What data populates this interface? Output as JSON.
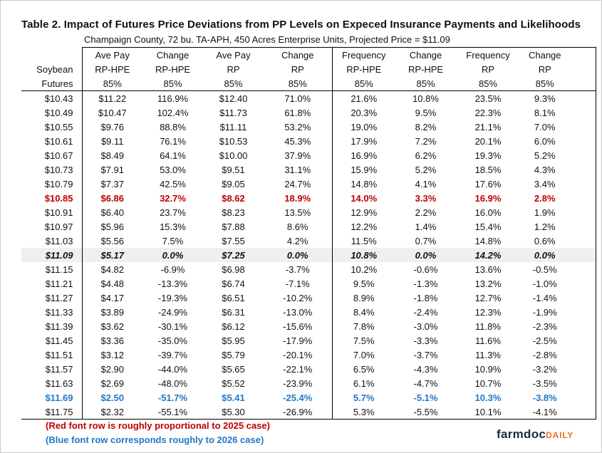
{
  "title": "Table 2. Impact of Futures Price Deviations from PP Levels on Expeced Insurance Payments and Likelihoods",
  "subtitle": "Champaign County, 72 bu. TA-APH, 450 Acres Enterprise Units, Projected Price = $11.09",
  "header": [
    [
      "",
      "Ave Pay",
      "Change",
      "Ave Pay",
      "Change",
      "Frequency",
      "Change",
      "Frequency",
      "Change"
    ],
    [
      "Soybean",
      "RP-HPE",
      "RP-HPE",
      "RP",
      "RP",
      "RP-HPE",
      "RP-HPE",
      "RP",
      "RP"
    ],
    [
      "Futures",
      "85%",
      "85%",
      "85%",
      "85%",
      "85%",
      "85%",
      "85%",
      "85%"
    ]
  ],
  "rows": [
    {
      "style": "",
      "cells": [
        "$10.43",
        "$11.22",
        "116.9%",
        "$12.40",
        "71.0%",
        "21.6%",
        "10.8%",
        "23.5%",
        "9.3%"
      ]
    },
    {
      "style": "",
      "cells": [
        "$10.49",
        "$10.47",
        "102.4%",
        "$11.73",
        "61.8%",
        "20.3%",
        "9.5%",
        "22.3%",
        "8.1%"
      ]
    },
    {
      "style": "",
      "cells": [
        "$10.55",
        "$9.76",
        "88.8%",
        "$11.11",
        "53.2%",
        "19.0%",
        "8.2%",
        "21.1%",
        "7.0%"
      ]
    },
    {
      "style": "",
      "cells": [
        "$10.61",
        "$9.11",
        "76.1%",
        "$10.53",
        "45.3%",
        "17.9%",
        "7.2%",
        "20.1%",
        "6.0%"
      ]
    },
    {
      "style": "",
      "cells": [
        "$10.67",
        "$8.49",
        "64.1%",
        "$10.00",
        "37.9%",
        "16.9%",
        "6.2%",
        "19.3%",
        "5.2%"
      ]
    },
    {
      "style": "",
      "cells": [
        "$10.73",
        "$7.91",
        "53.0%",
        "$9.51",
        "31.1%",
        "15.9%",
        "5.2%",
        "18.5%",
        "4.3%"
      ]
    },
    {
      "style": "",
      "cells": [
        "$10.79",
        "$7.37",
        "42.5%",
        "$9.05",
        "24.7%",
        "14.8%",
        "4.1%",
        "17.6%",
        "3.4%"
      ]
    },
    {
      "style": "red",
      "cells": [
        "$10.85",
        "$6.86",
        "32.7%",
        "$8.62",
        "18.9%",
        "14.0%",
        "3.3%",
        "16.9%",
        "2.8%"
      ]
    },
    {
      "style": "",
      "cells": [
        "$10.91",
        "$6.40",
        "23.7%",
        "$8.23",
        "13.5%",
        "12.9%",
        "2.2%",
        "16.0%",
        "1.9%"
      ]
    },
    {
      "style": "",
      "cells": [
        "$10.97",
        "$5.96",
        "15.3%",
        "$7.88",
        "8.6%",
        "12.2%",
        "1.4%",
        "15.4%",
        "1.2%"
      ]
    },
    {
      "style": "",
      "cells": [
        "$11.03",
        "$5.56",
        "7.5%",
        "$7.55",
        "4.2%",
        "11.5%",
        "0.7%",
        "14.8%",
        "0.6%"
      ]
    },
    {
      "style": "base",
      "cells": [
        "$11.09",
        "$5.17",
        "0.0%",
        "$7.25",
        "0.0%",
        "10.8%",
        "0.0%",
        "14.2%",
        "0.0%"
      ]
    },
    {
      "style": "",
      "cells": [
        "$11.15",
        "$4.82",
        "-6.9%",
        "$6.98",
        "-3.7%",
        "10.2%",
        "-0.6%",
        "13.6%",
        "-0.5%"
      ]
    },
    {
      "style": "",
      "cells": [
        "$11.21",
        "$4.48",
        "-13.3%",
        "$6.74",
        "-7.1%",
        "9.5%",
        "-1.3%",
        "13.2%",
        "-1.0%"
      ]
    },
    {
      "style": "",
      "cells": [
        "$11.27",
        "$4.17",
        "-19.3%",
        "$6.51",
        "-10.2%",
        "8.9%",
        "-1.8%",
        "12.7%",
        "-1.4%"
      ]
    },
    {
      "style": "",
      "cells": [
        "$11.33",
        "$3.89",
        "-24.9%",
        "$6.31",
        "-13.0%",
        "8.4%",
        "-2.4%",
        "12.3%",
        "-1.9%"
      ]
    },
    {
      "style": "",
      "cells": [
        "$11.39",
        "$3.62",
        "-30.1%",
        "$6.12",
        "-15.6%",
        "7.8%",
        "-3.0%",
        "11.8%",
        "-2.3%"
      ]
    },
    {
      "style": "",
      "cells": [
        "$11.45",
        "$3.36",
        "-35.0%",
        "$5.95",
        "-17.9%",
        "7.5%",
        "-3.3%",
        "11.6%",
        "-2.5%"
      ]
    },
    {
      "style": "",
      "cells": [
        "$11.51",
        "$3.12",
        "-39.7%",
        "$5.79",
        "-20.1%",
        "7.0%",
        "-3.7%",
        "11.3%",
        "-2.8%"
      ]
    },
    {
      "style": "",
      "cells": [
        "$11.57",
        "$2.90",
        "-44.0%",
        "$5.65",
        "-22.1%",
        "6.5%",
        "-4.3%",
        "10.9%",
        "-3.2%"
      ]
    },
    {
      "style": "",
      "cells": [
        "$11.63",
        "$2.69",
        "-48.0%",
        "$5.52",
        "-23.9%",
        "6.1%",
        "-4.7%",
        "10.7%",
        "-3.5%"
      ]
    },
    {
      "style": "blue",
      "cells": [
        "$11.69",
        "$2.50",
        "-51.7%",
        "$5.41",
        "-25.4%",
        "5.7%",
        "-5.1%",
        "10.3%",
        "-3.8%"
      ]
    },
    {
      "style": "",
      "cells": [
        "$11.75",
        "$2.32",
        "-55.1%",
        "$5.30",
        "-26.9%",
        "5.3%",
        "-5.5%",
        "10.1%",
        "-4.1%"
      ]
    }
  ],
  "notes": {
    "red": "(Red font row is roughly proportional to 2025 case)",
    "blue": "(Blue font row corresponds roughly to 2026 case)"
  },
  "colors": {
    "red_row": "#c00000",
    "blue_row": "#1f78c8",
    "base_row_bg": "#efefef",
    "logo_navy": "#1e2a4a",
    "logo_orange": "#e8702a"
  },
  "logo": {
    "main": "farmdoc",
    "accent": "DAILY"
  }
}
